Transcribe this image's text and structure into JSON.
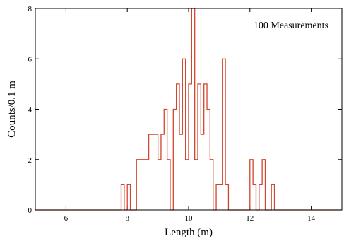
{
  "chart_data": {
    "type": "histogram",
    "annotation": "100 Measurements",
    "xlabel": "Length (m)",
    "ylabel": "Counts/0.1 m",
    "xlim": [
      5,
      15
    ],
    "ylim": [
      0,
      8
    ],
    "xticks": [
      6,
      8,
      10,
      12,
      14
    ],
    "yticks": [
      0,
      2,
      4,
      6,
      8
    ],
    "bin_width": 0.1,
    "line_color": "#d2452d",
    "bins": [
      {
        "x0": 5.0,
        "x1": 7.8,
        "count": 0
      },
      {
        "x0": 7.8,
        "x1": 7.9,
        "count": 1
      },
      {
        "x0": 7.9,
        "x1": 8.0,
        "count": 0
      },
      {
        "x0": 8.0,
        "x1": 8.1,
        "count": 1
      },
      {
        "x0": 8.1,
        "x1": 8.3,
        "count": 0
      },
      {
        "x0": 8.3,
        "x1": 8.7,
        "count": 2
      },
      {
        "x0": 8.7,
        "x1": 9.0,
        "count": 3
      },
      {
        "x0": 9.0,
        "x1": 9.1,
        "count": 2
      },
      {
        "x0": 9.1,
        "x1": 9.2,
        "count": 3
      },
      {
        "x0": 9.2,
        "x1": 9.3,
        "count": 4
      },
      {
        "x0": 9.3,
        "x1": 9.4,
        "count": 2
      },
      {
        "x0": 9.4,
        "x1": 9.5,
        "count": 0
      },
      {
        "x0": 9.5,
        "x1": 9.6,
        "count": 4
      },
      {
        "x0": 9.6,
        "x1": 9.7,
        "count": 5
      },
      {
        "x0": 9.7,
        "x1": 9.8,
        "count": 3
      },
      {
        "x0": 9.8,
        "x1": 9.9,
        "count": 6
      },
      {
        "x0": 9.9,
        "x1": 10.0,
        "count": 2
      },
      {
        "x0": 10.0,
        "x1": 10.1,
        "count": 5
      },
      {
        "x0": 10.1,
        "x1": 10.2,
        "count": 8
      },
      {
        "x0": 10.2,
        "x1": 10.3,
        "count": 2
      },
      {
        "x0": 10.3,
        "x1": 10.4,
        "count": 5
      },
      {
        "x0": 10.4,
        "x1": 10.5,
        "count": 3
      },
      {
        "x0": 10.5,
        "x1": 10.6,
        "count": 5
      },
      {
        "x0": 10.6,
        "x1": 10.7,
        "count": 4
      },
      {
        "x0": 10.7,
        "x1": 10.8,
        "count": 2
      },
      {
        "x0": 10.8,
        "x1": 10.9,
        "count": 0
      },
      {
        "x0": 10.9,
        "x1": 11.1,
        "count": 1
      },
      {
        "x0": 11.1,
        "x1": 11.2,
        "count": 6
      },
      {
        "x0": 11.2,
        "x1": 11.3,
        "count": 1
      },
      {
        "x0": 11.3,
        "x1": 12.0,
        "count": 0
      },
      {
        "x0": 12.0,
        "x1": 12.1,
        "count": 2
      },
      {
        "x0": 12.1,
        "x1": 12.2,
        "count": 1
      },
      {
        "x0": 12.2,
        "x1": 12.3,
        "count": 0
      },
      {
        "x0": 12.3,
        "x1": 12.4,
        "count": 1
      },
      {
        "x0": 12.4,
        "x1": 12.5,
        "count": 2
      },
      {
        "x0": 12.5,
        "x1": 12.6,
        "count": 0
      },
      {
        "x0": 12.6,
        "x1": 12.7,
        "count": 0
      },
      {
        "x0": 12.7,
        "x1": 12.8,
        "count": 1
      },
      {
        "x0": 12.8,
        "x1": 15.0,
        "count": 0
      }
    ]
  }
}
